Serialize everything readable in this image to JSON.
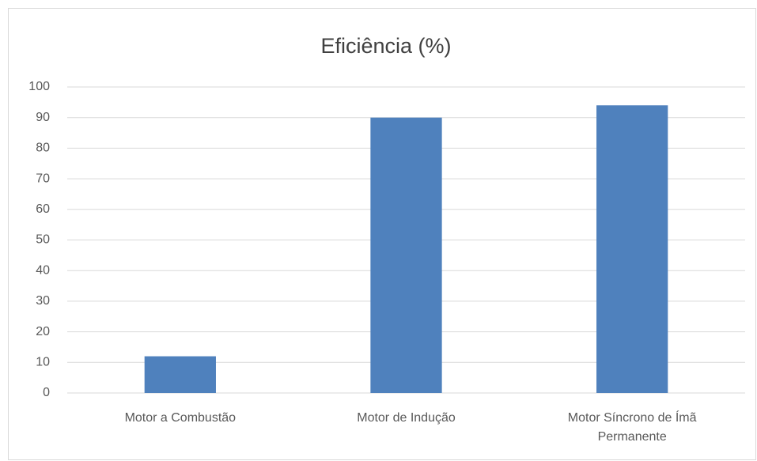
{
  "chart_data": {
    "type": "bar",
    "title": "Eficiência (%)",
    "categories": [
      "Motor a Combustão",
      "Motor de Indução",
      "Motor Síncrono de Ímã Permanente"
    ],
    "values": [
      12,
      90,
      94
    ],
    "color": "#4f81bd",
    "ylim": [
      0,
      100
    ],
    "yticks": [
      0,
      10,
      20,
      30,
      40,
      50,
      60,
      70,
      80,
      90,
      100
    ],
    "grid": true
  }
}
